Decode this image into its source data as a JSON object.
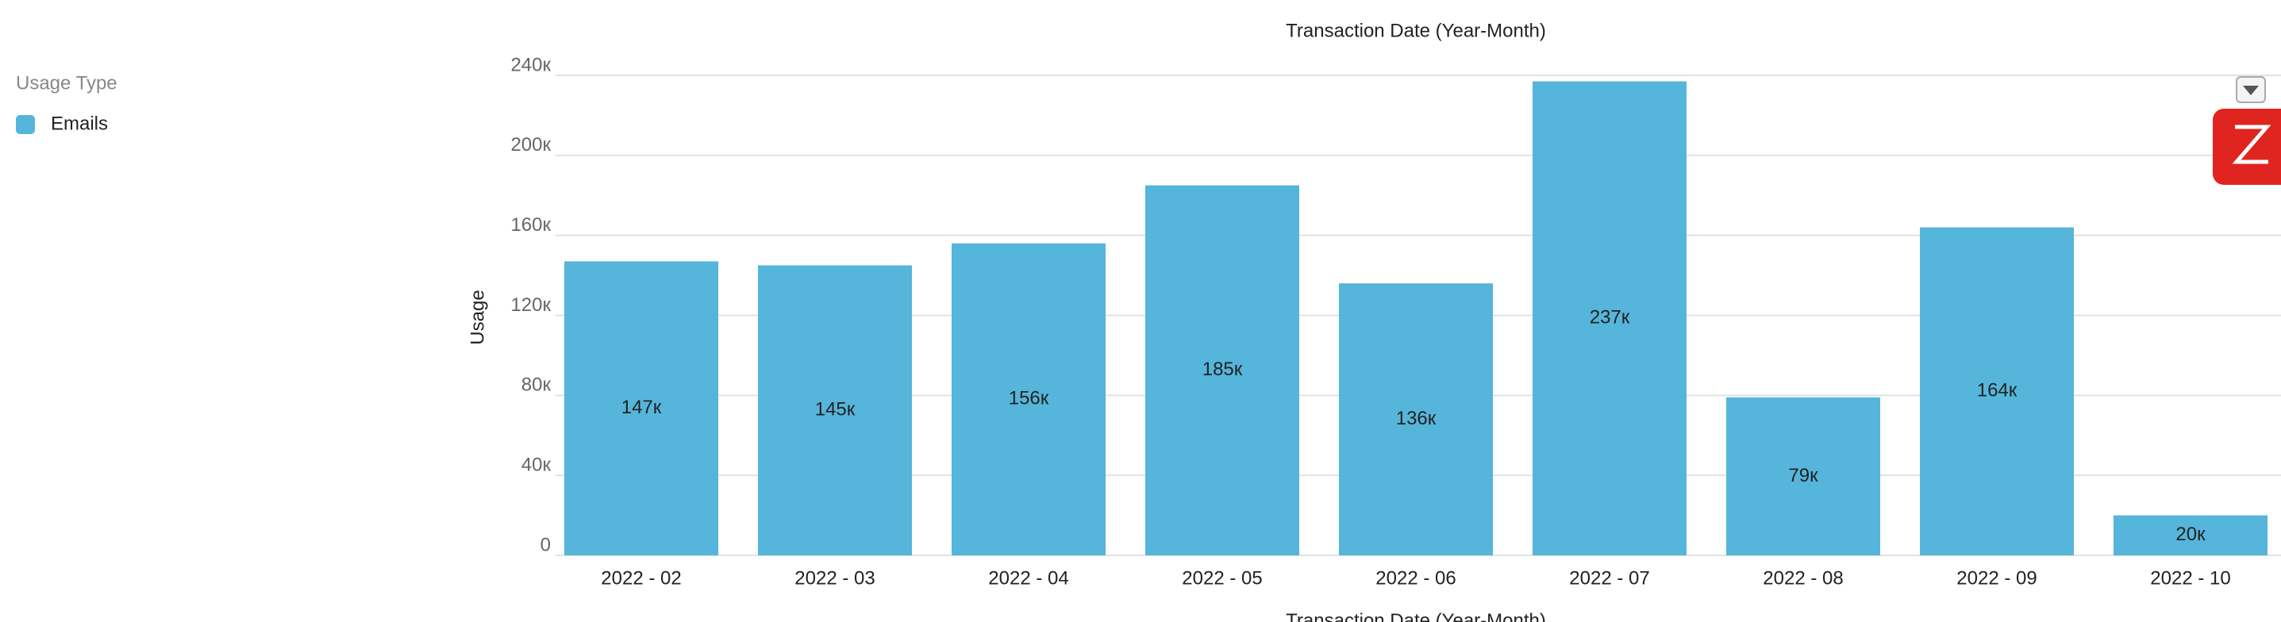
{
  "chart_data": {
    "type": "bar",
    "title": "Transaction Date (Year-Month)",
    "x_label": "Transaction Date (Year-Month)",
    "y_label": "Usage",
    "legend_title": "Usage Type",
    "categories": [
      "2022 - 02",
      "2022 - 03",
      "2022 - 04",
      "2022 - 05",
      "2022 - 06",
      "2022 - 07",
      "2022 - 08",
      "2022 - 09",
      "2022 - 10"
    ],
    "series": [
      {
        "name": "Emails",
        "color": "#55b5da",
        "values": [
          147000,
          145000,
          156000,
          185000,
          136000,
          237000,
          79000,
          164000,
          20000
        ],
        "value_labels": [
          "147к",
          "145к",
          "156к",
          "185к",
          "136к",
          "237к",
          "79к",
          "164к",
          "20к"
        ]
      }
    ],
    "ylim": [
      0,
      240000
    ],
    "yticks": [
      {
        "value": 0,
        "label": "0"
      },
      {
        "value": 40000,
        "label": "40к"
      },
      {
        "value": 80000,
        "label": "80к"
      },
      {
        "value": 120000,
        "label": "120к"
      },
      {
        "value": 160000,
        "label": "160к"
      },
      {
        "value": 200000,
        "label": "200к"
      },
      {
        "value": 240000,
        "label": "240к"
      }
    ],
    "grid": true,
    "legend": "left"
  }
}
